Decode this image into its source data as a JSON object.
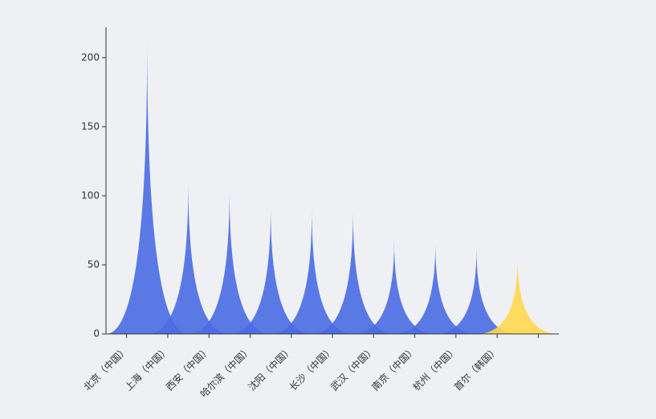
{
  "chart_data": {
    "type": "pictorial-spike",
    "categories": [
      "北京（中国）",
      "上海（中国）",
      "西安（中国）",
      "哈尔滨（中国）",
      "沈阳（中国）",
      "长沙（中国）",
      "武汉（中国）",
      "南京（中国）",
      "杭州（中国）",
      "首尔（韩国）"
    ],
    "values": [
      212,
      110,
      104,
      92,
      90,
      89,
      67,
      65,
      62,
      55
    ],
    "colors": [
      "#4a6be3",
      "#4a6be3",
      "#4a6be3",
      "#4a6be3",
      "#4a6be3",
      "#4a6be3",
      "#4a6be3",
      "#4a6be3",
      "#4a6be3",
      "#ffd84f"
    ],
    "ylim": [
      0,
      222
    ],
    "yticks": [
      0,
      50,
      100,
      150,
      200
    ],
    "grid": false
  }
}
